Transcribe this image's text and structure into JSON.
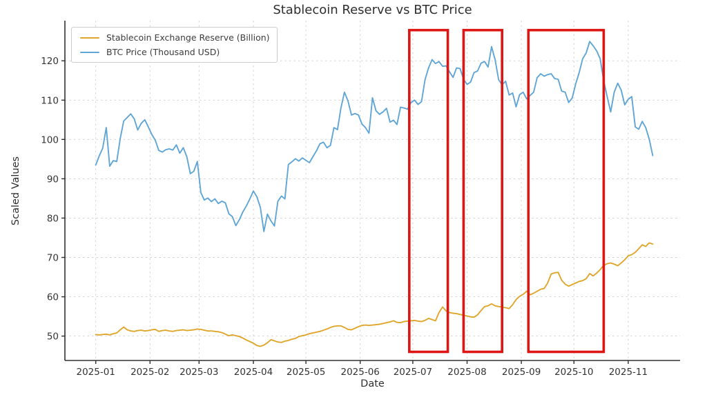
{
  "figure": {
    "title": "Stablecoin Reserve vs BTC Price",
    "xlabel": "Date",
    "ylabel": "Scaled Values"
  },
  "chart_data": {
    "type": "line",
    "title": "Stablecoin Reserve vs BTC Price",
    "xlabel": "Date",
    "ylabel": "Scaled Values",
    "grid": true,
    "legend_position": "upper left",
    "x_start_date": "2025-01-01",
    "step_days": 2,
    "x_tick_labels": [
      "2025-01",
      "2025-02",
      "2025-03",
      "2025-04",
      "2025-05",
      "2025-06",
      "2025-07",
      "2025-08",
      "2025-09",
      "2025-10",
      "2025-11"
    ],
    "y_ticks": [
      50,
      60,
      70,
      80,
      90,
      100,
      110,
      120
    ],
    "ylim": [
      43.8,
      130.2
    ],
    "x_axis_range_days": [
      -17.6,
      333.6
    ],
    "axis_color": "#2e2e2e",
    "grid_color": "#cfcfcf",
    "series": [
      {
        "name": "Stablecoin Exchange Reserve (Billion)",
        "color": "#DFA62B",
        "values": [
          50.4,
          50.3,
          50.4,
          50.5,
          50.3,
          50.6,
          50.8,
          51.6,
          52.3,
          51.6,
          51.3,
          51.2,
          51.4,
          51.5,
          51.3,
          51.4,
          51.6,
          51.7,
          51.2,
          51.4,
          51.5,
          51.3,
          51.2,
          51.4,
          51.5,
          51.6,
          51.4,
          51.5,
          51.6,
          51.8,
          51.7,
          51.5,
          51.3,
          51.3,
          51.2,
          51.1,
          50.9,
          50.5,
          50.1,
          50.3,
          50.1,
          49.9,
          49.5,
          49.0,
          48.6,
          48.2,
          47.6,
          47.4,
          47.7,
          48.3,
          49.1,
          48.8,
          48.5,
          48.4,
          48.7,
          48.9,
          49.2,
          49.4,
          49.9,
          50.1,
          50.3,
          50.6,
          50.8,
          51.0,
          51.2,
          51.5,
          51.8,
          52.2,
          52.5,
          52.6,
          52.6,
          52.2,
          51.7,
          51.6,
          52.0,
          52.4,
          52.7,
          52.8,
          52.7,
          52.8,
          52.9,
          53.0,
          53.2,
          53.4,
          53.6,
          53.9,
          53.5,
          53.4,
          53.7,
          53.8,
          53.9,
          54.0,
          53.8,
          53.7,
          54.0,
          54.5,
          54.2,
          53.9,
          56.0,
          57.4,
          56.4,
          56.0,
          55.8,
          55.7,
          55.5,
          55.3,
          55.1,
          54.9,
          54.8,
          55.4,
          56.5,
          57.5,
          57.7,
          58.2,
          57.7,
          57.5,
          57.4,
          57.2,
          57.0,
          58.0,
          59.3,
          60.1,
          60.6,
          61.4,
          60.5,
          60.9,
          61.4,
          61.9,
          62.1,
          63.5,
          65.8,
          66.1,
          66.2,
          64.2,
          63.2,
          62.7,
          63.1,
          63.5,
          63.9,
          64.1,
          64.6,
          65.9,
          65.3,
          66.0,
          66.9,
          68.0,
          68.4,
          68.6,
          68.3,
          67.9,
          68.6,
          69.4,
          70.4,
          70.7,
          71.3,
          72.2,
          73.2,
          72.8,
          73.7,
          73.4
        ]
      },
      {
        "name": "BTC Price (Thousand USD)",
        "color": "#5FA5D6",
        "values": [
          93.5,
          95.8,
          97.8,
          103.0,
          93.2,
          94.6,
          94.4,
          100.3,
          104.7,
          105.6,
          106.5,
          105.2,
          102.4,
          104.1,
          105.0,
          103.2,
          101.3,
          99.8,
          97.2,
          96.8,
          97.4,
          97.6,
          97.3,
          98.6,
          96.5,
          97.9,
          95.6,
          91.3,
          91.9,
          94.4,
          86.5,
          84.6,
          85.1,
          84.2,
          84.9,
          83.7,
          84.3,
          83.9,
          81.1,
          80.4,
          78.1,
          79.6,
          81.6,
          83.1,
          84.9,
          86.9,
          85.4,
          82.7,
          76.6,
          81.0,
          79.3,
          78.0,
          84.3,
          85.6,
          84.9,
          93.6,
          94.3,
          95.1,
          94.5,
          95.3,
          94.7,
          94.1,
          95.6,
          97.1,
          98.9,
          99.3,
          97.9,
          98.5,
          103.0,
          102.5,
          108.0,
          112.0,
          109.8,
          106.2,
          106.6,
          106.2,
          103.9,
          103.0,
          101.6,
          110.6,
          107.3,
          106.4,
          107.0,
          107.9,
          104.4,
          104.9,
          103.8,
          108.2,
          108.0,
          107.7,
          109.4,
          110.0,
          108.9,
          109.6,
          115.2,
          118.2,
          120.3,
          119.3,
          119.8,
          118.6,
          118.7,
          117.2,
          115.8,
          118.2,
          118.0,
          115.3,
          114.0,
          114.6,
          117.0,
          117.4,
          119.4,
          119.8,
          118.4,
          123.6,
          120.3,
          115.2,
          113.9,
          114.8,
          111.3,
          111.8,
          108.3,
          111.4,
          112.0,
          110.3,
          111.2,
          112.0,
          115.7,
          116.7,
          116.1,
          116.5,
          116.7,
          115.5,
          115.3,
          112.3,
          112.0,
          109.4,
          110.5,
          114.1,
          117.0,
          120.5,
          122.0,
          124.9,
          123.8,
          122.5,
          120.5,
          114.9,
          110.8,
          107.0,
          112.0,
          114.3,
          112.5,
          108.8,
          110.2,
          110.9,
          103.2,
          102.6,
          104.6,
          103.0,
          100.1,
          95.9
        ]
      }
    ],
    "highlight_regions": [
      {
        "start": "2025-06-29",
        "end": "2025-07-21",
        "value_range": [
          46.0,
          127.8
        ],
        "color": "#DD1513"
      },
      {
        "start": "2025-07-30",
        "end": "2025-08-21",
        "value_range": [
          46.0,
          127.8
        ],
        "color": "#DD1513"
      },
      {
        "start": "2025-09-05",
        "end": "2025-10-18",
        "value_range": [
          46.0,
          127.8
        ],
        "color": "#DD1513"
      }
    ]
  }
}
